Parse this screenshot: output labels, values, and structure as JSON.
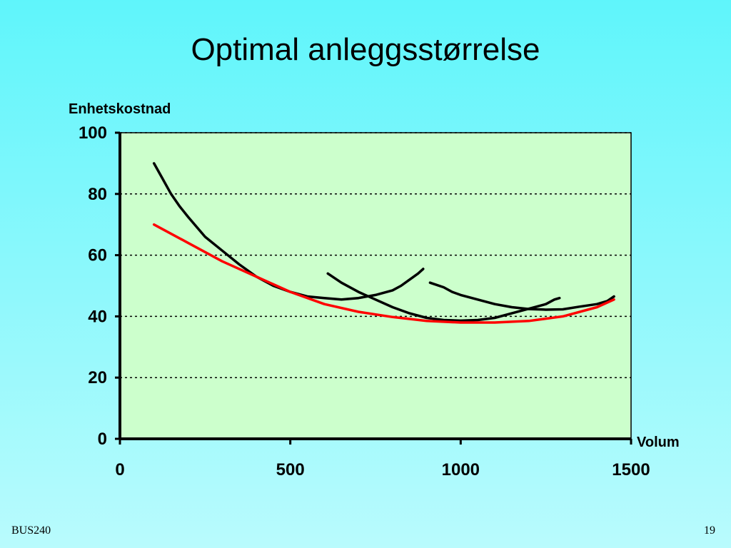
{
  "slide": {
    "title": "Optimal anleggsstørrelse",
    "footer_left": "BUS240",
    "footer_right": "19"
  },
  "chart_data": {
    "type": "line",
    "title": "",
    "ylabel": "Enhetskostnad",
    "xlabel": "Volum",
    "xlim": [
      0,
      1500
    ],
    "ylim": [
      0,
      100
    ],
    "x_ticks": [
      0,
      500,
      1000,
      1500
    ],
    "y_ticks": [
      0,
      20,
      40,
      60,
      80,
      100
    ],
    "grid": "horizontal dotted",
    "plot_background": "#ccffcc",
    "series": [
      {
        "color": "#000000",
        "points": [
          [
            100,
            90
          ],
          [
            125,
            85
          ],
          [
            150,
            80
          ],
          [
            175,
            76
          ],
          [
            200,
            72.5
          ],
          [
            250,
            66
          ],
          [
            300,
            61.5
          ],
          [
            350,
            57
          ],
          [
            400,
            53
          ],
          [
            450,
            50
          ],
          [
            500,
            48
          ],
          [
            550,
            46.5
          ],
          [
            600,
            46
          ],
          [
            650,
            45.5
          ],
          [
            700,
            46
          ],
          [
            750,
            47
          ],
          [
            800,
            48.5
          ],
          [
            825,
            50
          ],
          [
            850,
            52
          ],
          [
            875,
            54
          ],
          [
            890,
            55.5
          ]
        ]
      },
      {
        "color": "#000000",
        "points": [
          [
            610,
            54
          ],
          [
            650,
            51
          ],
          [
            700,
            48
          ],
          [
            750,
            45.5
          ],
          [
            800,
            43
          ],
          [
            850,
            41
          ],
          [
            900,
            39.5
          ],
          [
            950,
            38.8
          ],
          [
            1000,
            38.6
          ],
          [
            1050,
            38.8
          ],
          [
            1100,
            39.5
          ],
          [
            1150,
            41
          ],
          [
            1200,
            42.5
          ],
          [
            1250,
            44
          ],
          [
            1275,
            45.5
          ],
          [
            1290,
            46
          ]
        ]
      },
      {
        "color": "#000000",
        "points": [
          [
            910,
            51
          ],
          [
            950,
            49.5
          ],
          [
            975,
            48
          ],
          [
            1000,
            47
          ],
          [
            1050,
            45.5
          ],
          [
            1100,
            44
          ],
          [
            1150,
            43
          ],
          [
            1200,
            42.4
          ],
          [
            1250,
            42.2
          ],
          [
            1300,
            42.3
          ],
          [
            1350,
            43.2
          ],
          [
            1400,
            44
          ],
          [
            1430,
            45
          ],
          [
            1450,
            46.5
          ]
        ]
      },
      {
        "color": "#ff0000",
        "points": [
          [
            100,
            70
          ],
          [
            200,
            64
          ],
          [
            300,
            58
          ],
          [
            400,
            53
          ],
          [
            500,
            48
          ],
          [
            600,
            44
          ],
          [
            700,
            41.5
          ],
          [
            800,
            39.8
          ],
          [
            900,
            38.5
          ],
          [
            1000,
            38
          ],
          [
            1100,
            38
          ],
          [
            1200,
            38.5
          ],
          [
            1300,
            40
          ],
          [
            1400,
            43
          ],
          [
            1450,
            45.5
          ]
        ]
      }
    ]
  }
}
